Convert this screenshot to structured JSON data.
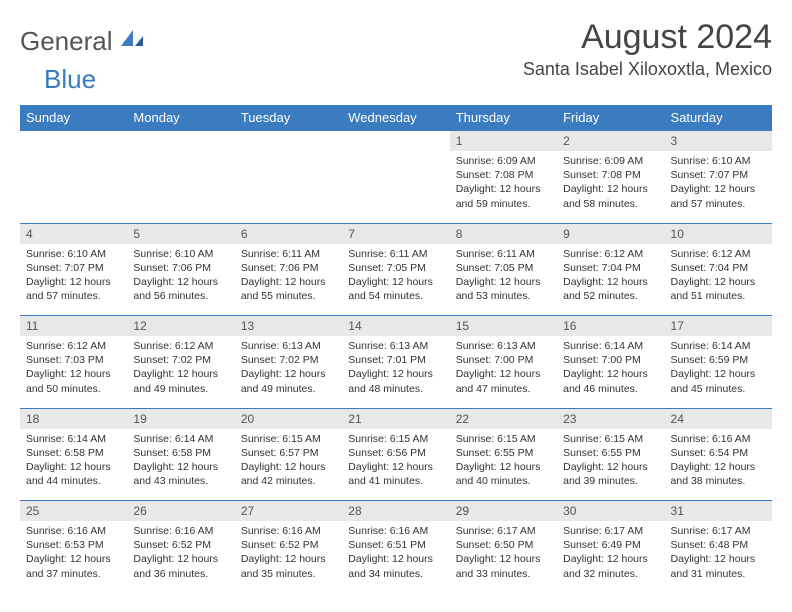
{
  "logo": {
    "general": "General",
    "blue": "Blue"
  },
  "title": "August 2024",
  "location": "Santa Isabel Xiloxoxtla, Mexico",
  "colors": {
    "header_bg": "#3a7cbf",
    "header_fg": "#ffffff",
    "daynum_bg": "#e8e8e8",
    "border": "#3a7cbf",
    "text": "#333333",
    "logo_gray": "#555555",
    "logo_blue": "#3a7cbf",
    "background": "#ffffff"
  },
  "typography": {
    "title_fontsize": 34,
    "location_fontsize": 18,
    "dayhead_fontsize": 13,
    "daynum_fontsize": 12,
    "detail_fontsize": 10.5,
    "logo_fontsize": 26
  },
  "day_names": [
    "Sunday",
    "Monday",
    "Tuesday",
    "Wednesday",
    "Thursday",
    "Friday",
    "Saturday"
  ],
  "weeks": [
    [
      null,
      null,
      null,
      null,
      {
        "n": "1",
        "sr": "6:09 AM",
        "ss": "7:08 PM",
        "dl": "12 hours and 59 minutes."
      },
      {
        "n": "2",
        "sr": "6:09 AM",
        "ss": "7:08 PM",
        "dl": "12 hours and 58 minutes."
      },
      {
        "n": "3",
        "sr": "6:10 AM",
        "ss": "7:07 PM",
        "dl": "12 hours and 57 minutes."
      }
    ],
    [
      {
        "n": "4",
        "sr": "6:10 AM",
        "ss": "7:07 PM",
        "dl": "12 hours and 57 minutes."
      },
      {
        "n": "5",
        "sr": "6:10 AM",
        "ss": "7:06 PM",
        "dl": "12 hours and 56 minutes."
      },
      {
        "n": "6",
        "sr": "6:11 AM",
        "ss": "7:06 PM",
        "dl": "12 hours and 55 minutes."
      },
      {
        "n": "7",
        "sr": "6:11 AM",
        "ss": "7:05 PM",
        "dl": "12 hours and 54 minutes."
      },
      {
        "n": "8",
        "sr": "6:11 AM",
        "ss": "7:05 PM",
        "dl": "12 hours and 53 minutes."
      },
      {
        "n": "9",
        "sr": "6:12 AM",
        "ss": "7:04 PM",
        "dl": "12 hours and 52 minutes."
      },
      {
        "n": "10",
        "sr": "6:12 AM",
        "ss": "7:04 PM",
        "dl": "12 hours and 51 minutes."
      }
    ],
    [
      {
        "n": "11",
        "sr": "6:12 AM",
        "ss": "7:03 PM",
        "dl": "12 hours and 50 minutes."
      },
      {
        "n": "12",
        "sr": "6:12 AM",
        "ss": "7:02 PM",
        "dl": "12 hours and 49 minutes."
      },
      {
        "n": "13",
        "sr": "6:13 AM",
        "ss": "7:02 PM",
        "dl": "12 hours and 49 minutes."
      },
      {
        "n": "14",
        "sr": "6:13 AM",
        "ss": "7:01 PM",
        "dl": "12 hours and 48 minutes."
      },
      {
        "n": "15",
        "sr": "6:13 AM",
        "ss": "7:00 PM",
        "dl": "12 hours and 47 minutes."
      },
      {
        "n": "16",
        "sr": "6:14 AM",
        "ss": "7:00 PM",
        "dl": "12 hours and 46 minutes."
      },
      {
        "n": "17",
        "sr": "6:14 AM",
        "ss": "6:59 PM",
        "dl": "12 hours and 45 minutes."
      }
    ],
    [
      {
        "n": "18",
        "sr": "6:14 AM",
        "ss": "6:58 PM",
        "dl": "12 hours and 44 minutes."
      },
      {
        "n": "19",
        "sr": "6:14 AM",
        "ss": "6:58 PM",
        "dl": "12 hours and 43 minutes."
      },
      {
        "n": "20",
        "sr": "6:15 AM",
        "ss": "6:57 PM",
        "dl": "12 hours and 42 minutes."
      },
      {
        "n": "21",
        "sr": "6:15 AM",
        "ss": "6:56 PM",
        "dl": "12 hours and 41 minutes."
      },
      {
        "n": "22",
        "sr": "6:15 AM",
        "ss": "6:55 PM",
        "dl": "12 hours and 40 minutes."
      },
      {
        "n": "23",
        "sr": "6:15 AM",
        "ss": "6:55 PM",
        "dl": "12 hours and 39 minutes."
      },
      {
        "n": "24",
        "sr": "6:16 AM",
        "ss": "6:54 PM",
        "dl": "12 hours and 38 minutes."
      }
    ],
    [
      {
        "n": "25",
        "sr": "6:16 AM",
        "ss": "6:53 PM",
        "dl": "12 hours and 37 minutes."
      },
      {
        "n": "26",
        "sr": "6:16 AM",
        "ss": "6:52 PM",
        "dl": "12 hours and 36 minutes."
      },
      {
        "n": "27",
        "sr": "6:16 AM",
        "ss": "6:52 PM",
        "dl": "12 hours and 35 minutes."
      },
      {
        "n": "28",
        "sr": "6:16 AM",
        "ss": "6:51 PM",
        "dl": "12 hours and 34 minutes."
      },
      {
        "n": "29",
        "sr": "6:17 AM",
        "ss": "6:50 PM",
        "dl": "12 hours and 33 minutes."
      },
      {
        "n": "30",
        "sr": "6:17 AM",
        "ss": "6:49 PM",
        "dl": "12 hours and 32 minutes."
      },
      {
        "n": "31",
        "sr": "6:17 AM",
        "ss": "6:48 PM",
        "dl": "12 hours and 31 minutes."
      }
    ]
  ],
  "labels": {
    "sunrise": "Sunrise:",
    "sunset": "Sunset:",
    "daylight": "Daylight:"
  }
}
